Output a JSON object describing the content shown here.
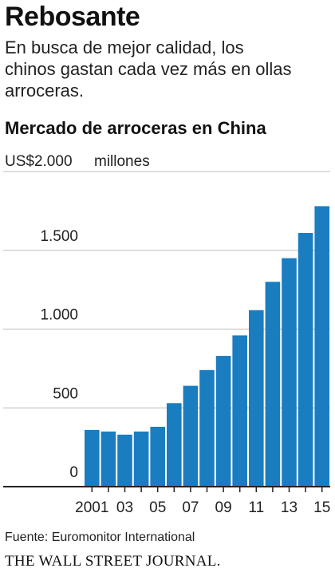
{
  "headline": "Rebosante",
  "dek": "En busca de mejor calidad, los chinos gastan cada vez más en ollas arroceras.",
  "source": "Fuente: Euromonitor International",
  "publisher": "THE WALL STREET JOURNAL.",
  "colors": {
    "bar": "#1a7dc0",
    "grid": "#bdbdbd",
    "axis": "#222222"
  },
  "chart_data": {
    "type": "bar",
    "title": "Mercado de arroceras en China",
    "unit_label": "millones",
    "ylim": [
      0,
      2000
    ],
    "y_ticks": [
      {
        "value": 0,
        "label": "0"
      },
      {
        "value": 500,
        "label": "500"
      },
      {
        "value": 1000,
        "label": "1.000"
      },
      {
        "value": 1500,
        "label": "1.500"
      },
      {
        "value": 2000,
        "label": "US$2.000"
      }
    ],
    "grid": true,
    "categories": [
      "2001",
      "2002",
      "2003",
      "2004",
      "2005",
      "2006",
      "2007",
      "2008",
      "2009",
      "2010",
      "2011",
      "2012",
      "2013",
      "2014",
      "2015"
    ],
    "x_tick_labels": [
      "2001",
      "",
      "03",
      "",
      "05",
      "",
      "07",
      "",
      "09",
      "",
      "11",
      "",
      "13",
      "",
      "15"
    ],
    "values": [
      360,
      350,
      330,
      350,
      380,
      530,
      640,
      740,
      830,
      960,
      1120,
      1300,
      1450,
      1610,
      1780
    ]
  }
}
